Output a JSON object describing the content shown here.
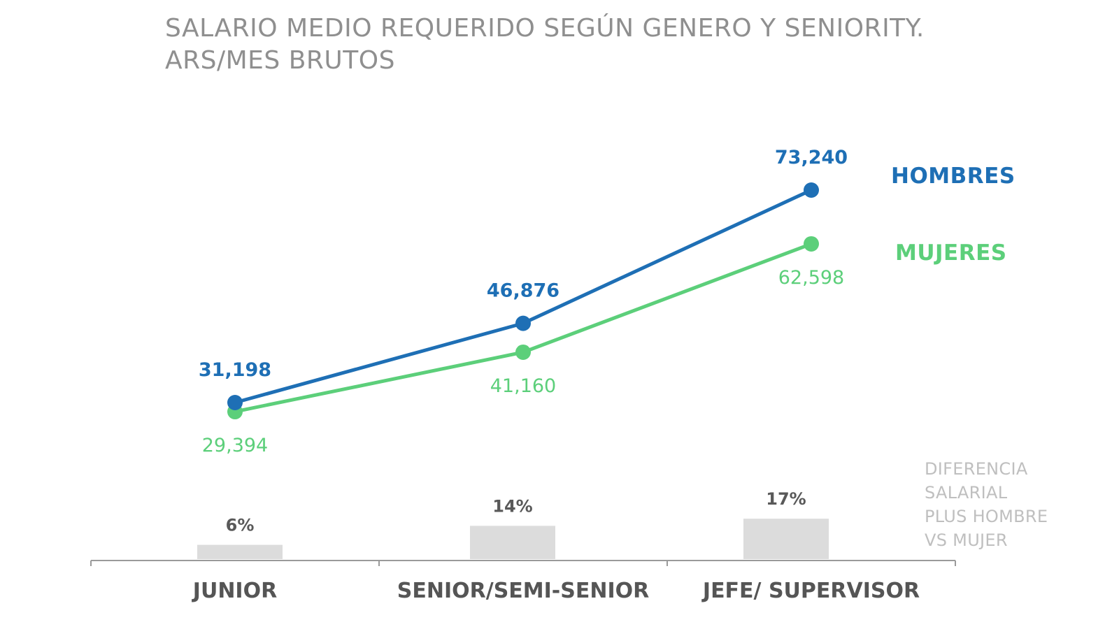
{
  "title_line1": "SALARIO MEDIO REQUERIDO SEGÚN GENERO Y SENIORITY.",
  "title_line2": "ARS/MES BRUTOS",
  "legend": {
    "hombres": "HOMBRES",
    "mujeres": "MUJERES"
  },
  "diff_note": [
    "DIFERENCIA",
    "SALARIAL",
    "PLUS HOMBRE",
    "VS MUJER"
  ],
  "colors": {
    "hombres": "#1e6fb5",
    "mujeres": "#5ccf7a",
    "bars": "#dcdcdc",
    "axis": "#9a9a9a",
    "category_text": "#555555",
    "bar_label": "#595959"
  },
  "chart_data": {
    "type": "line",
    "title": "SALARIO MEDIO REQUERIDO SEGÚN GENERO Y SENIORITY. ARS/MES BRUTOS",
    "categories": [
      "JUNIOR",
      "SENIOR/SEMI-SENIOR",
      "JEFE/ SUPERVISOR"
    ],
    "series": [
      {
        "name": "HOMBRES",
        "values": [
          31198,
          46876,
          73240
        ],
        "labels": [
          "31,198",
          "46,876",
          "73,240"
        ]
      },
      {
        "name": "MUJERES",
        "values": [
          29394,
          41160,
          62598
        ],
        "labels": [
          "29,394",
          "41,160",
          "62,598"
        ]
      }
    ],
    "secondary": {
      "type": "bar",
      "name": "DIFERENCIA SALARIAL PLUS HOMBRE VS MUJER",
      "values": [
        6,
        14,
        17
      ],
      "labels": [
        "6%",
        "14%",
        "17%"
      ],
      "unit": "%"
    },
    "grid": false,
    "legend_position": "right"
  }
}
